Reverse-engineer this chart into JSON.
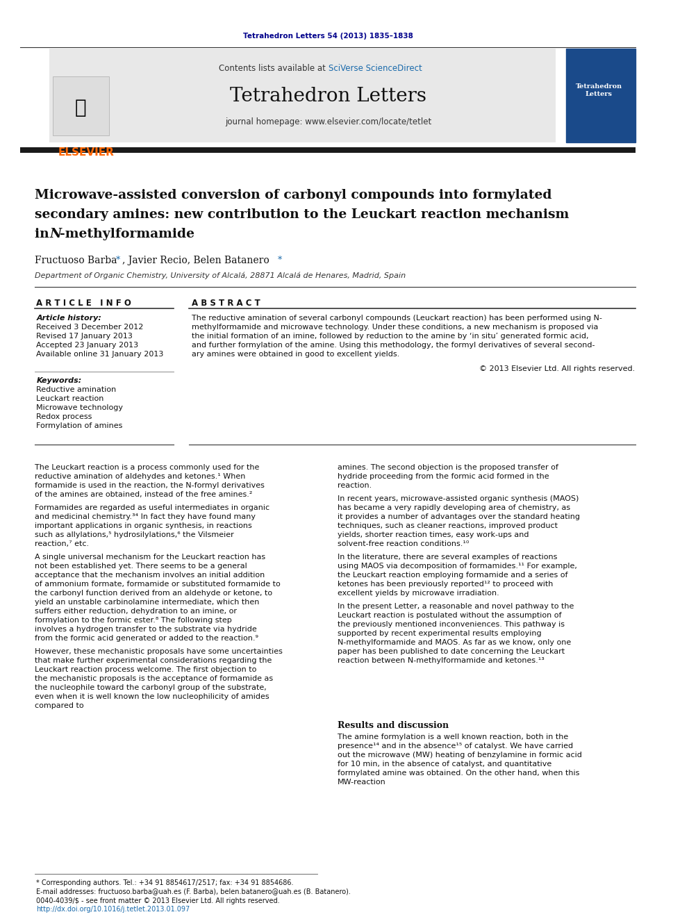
{
  "background_color": "#ffffff",
  "page_width": 9.92,
  "page_height": 13.23,
  "journal_ref": "Tetrahedron Letters 54 (2013) 1835–1838",
  "journal_ref_color": "#00008B",
  "header_bg": "#e8e8e8",
  "header_text": "Contents lists available at SciVerse ScienceDirect",
  "sciverse_color": "#1a6aab",
  "journal_name": "Tetrahedron Letters",
  "journal_homepage": "journal homepage: www.elsevier.com/locate/tetlet",
  "title_line1": "Microwave-assisted conversion of carbonyl compounds into formylated",
  "title_line2": "secondary amines: new contribution to the Leuckart reaction mechanism",
  "title_line3": "in –methylformamide",
  "title_italic_part": "N",
  "authors": "Fructuoso Barba ⋆, Javier Recio, Belen Batanero ⋆",
  "affiliation": "Department of Organic Chemistry, University of Alcalá, 28871 Alcalá de Henares, Madrid, Spain",
  "article_info_label": "A R T I C L E   I N F O",
  "abstract_label": "A B S T R A C T",
  "article_history_label": "Article history:",
  "received": "Received 3 December 2012",
  "revised": "Revised 17 January 2013",
  "accepted": "Accepted 23 January 2013",
  "available": "Available online 31 January 2013",
  "keywords_label": "Keywords:",
  "keywords": [
    "Reductive amination",
    "Leuckart reaction",
    "Microwave technology",
    "Redox process",
    "Formylation of amines"
  ],
  "abstract_text": "The reductive amination of several carbonyl compounds (Leuckart reaction) has been performed using N-methylformamide and microwave technology. Under these conditions, a new mechanism is proposed via the initial formation of an imine, followed by reduction to the amine by ‘in situ’ generated formic acid, and further formylation of the amine. Using this methodology, the formyl derivatives of several secondary amines were obtained in good to excellent yields.",
  "copyright": "© 2013 Elsevier Ltd. All rights reserved.",
  "body_col1_p1": "The Leuckart reaction is a process commonly used for the reductive amination of aldehydes and ketones.1 When formamide is used in the reaction, the N-formyl derivatives of the amines are obtained, instead of the free amines.2",
  "body_col1_p2": "Formamides are regarded as useful intermediates in organic and medicinal chemistry.3,4 In fact they have found many important applications in organic synthesis, in reactions such as allylations,5 hydrosilylations,6 the Vilsmeier reaction,7 etc.",
  "body_col1_p3": "A single universal mechanism for the Leuckart reaction has not been established yet. There seems to be a general acceptance that the mechanism involves an initial addition of ammonium formate, formamide or substituted formamide to the carbonyl function derived from an aldehyde or ketone, to yield an unstable carbinolamine intermediate, which then suffers either reduction, dehydration to an imine, or formylation to the formic ester.8 The following step involves a hydrogen transfer to the substrate via hydride from the formic acid generated or added to the reaction.9",
  "body_col1_p4": "However, these mechanistic proposals have some uncertainties that make further experimental considerations regarding the Leuckart reaction process welcome. The first objection to the mechanistic proposals is the acceptance of formamide as the nucleophile toward the carbonyl group of the substrate, even when it is well known the low nucleophilicity of amides compared to",
  "body_col2_p1": "amines. The second objection is the proposed transfer of hydride proceeding from the formic acid formed in the reaction.",
  "body_col2_p2": "In recent years, microwave-assisted organic synthesis (MAOS) has became a very rapidly developing area of chemistry, as it provides a number of advantages over the standard heating techniques, such as cleaner reactions, improved product yields, shorter reaction times, easy work-ups and solvent-free reaction conditions.10",
  "body_col2_p3": "In the literature, there are several examples of reactions using MAOS via decomposition of formamides.11 For example, the Leuckart reaction employing formamide and a series of ketones has been previously reported12 to proceed with excellent yields by microwave irradiation.",
  "body_col2_p4": "In the present Letter, a reasonable and novel pathway to the Leuckart reaction is postulated without the assumption of the previously mentioned inconveniences. This pathway is supported by recent experimental results employing N-methylformamide and MAOS. As far as we know, only one paper has been published to date concerning the Leuckart reaction between N-methylformamide and ketones.13",
  "results_heading": "Results and discussion",
  "results_p1": "The amine formylation is a well known reaction, both in the presence14 and in the absence15 of catalyst. We have carried out the microwave (MW) heating of benzylamine in formic acid for 10 min, in the absence of catalyst, and quantitative formylated amine was obtained. On the other hand, when this MW-reaction",
  "footer_note": "* Corresponding authors. Tel.: +34 91 8854617/2517; fax: +34 91 8854686.",
  "footer_email": "E-mail addresses: fructuoso.barba@uah.es (F. Barba), belen.batanero@uah.es (B. Batanero).",
  "footer_issn": "0040-4039/$ - see front matter © 2013 Elsevier Ltd. All rights reserved.",
  "footer_doi": "http://dx.doi.org/10.1016/j.tetlet.2013.01.097",
  "black_bar_color": "#1a1a1a",
  "dark_red_color": "#cc0000",
  "text_color": "#000000",
  "light_gray": "#f0f0f0"
}
